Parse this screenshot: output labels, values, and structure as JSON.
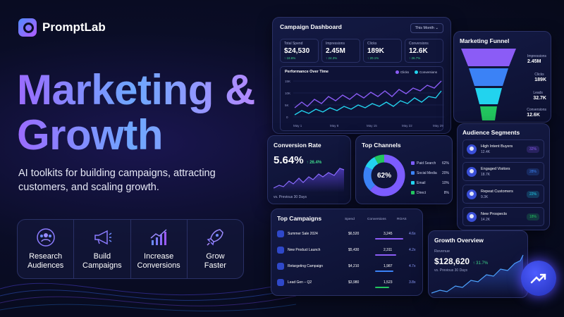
{
  "brand": {
    "name": "PromptLab",
    "accent": "#8b5cf6",
    "accent2": "#3b82f6"
  },
  "hero": {
    "line1": "Marketing &",
    "line2": "Growth",
    "tagline": "AI toolkits for building campaigns, attracting customers, and scaling growth."
  },
  "toolkit": [
    {
      "icon": "users-target-icon",
      "line1": "Research",
      "line2": "Audiences"
    },
    {
      "icon": "megaphone-icon",
      "line1": "Build",
      "line2": "Campaigns"
    },
    {
      "icon": "chart-growth-icon",
      "line1": "Increase",
      "line2": "Conversions"
    },
    {
      "icon": "rocket-icon",
      "line1": "Grow",
      "line2": "Faster"
    }
  ],
  "dashboard": {
    "title": "Campaign Dashboard",
    "period": "This Month",
    "stats": [
      {
        "label": "Total Spend",
        "value": "$24,530",
        "delta": "↑ 18.6%"
      },
      {
        "label": "Impressions",
        "value": "2.45M",
        "delta": "↑ 24.3%"
      },
      {
        "label": "Clicks",
        "value": "189K",
        "delta": "↑ 20.1%"
      },
      {
        "label": "Conversions",
        "value": "12.6K",
        "delta": "↑ 26.7%"
      }
    ],
    "performance": {
      "title": "Performance Over Time",
      "legend": [
        "Clicks",
        "Conversions"
      ],
      "yticks": [
        "15K",
        "10K",
        "5K",
        "0"
      ],
      "xticks": [
        "May 1",
        "May 8",
        "May 15",
        "May 22",
        "May 29"
      ]
    }
  },
  "funnel": {
    "title": "Marketing Funnel",
    "stages": [
      {
        "label": "Impressions",
        "value": "2.45M"
      },
      {
        "label": "Clicks",
        "value": "189K"
      },
      {
        "label": "Leads",
        "value": "32.7K"
      },
      {
        "label": "Conversions",
        "value": "12.6K"
      }
    ]
  },
  "audience": {
    "title": "Audience Segments",
    "items": [
      {
        "name": "High Intent Buyers",
        "count": "12.4K",
        "pct": "32%",
        "color": "#8b5cf6"
      },
      {
        "name": "Engaged Visitors",
        "count": "18.7K",
        "pct": "28%",
        "color": "#3b82f6"
      },
      {
        "name": "Repeat Customers",
        "count": "9.3K",
        "pct": "22%",
        "color": "#22d3ee"
      },
      {
        "name": "New Prospects",
        "count": "14.2K",
        "pct": "18%",
        "color": "#22c55e"
      }
    ]
  },
  "conversion": {
    "title": "Conversion Rate",
    "value": "5.64%",
    "delta": "↑ 26.4%",
    "foot": "vs. Previous 30 Days"
  },
  "channels": {
    "title": "Top Channels",
    "center": "62%",
    "items": [
      {
        "name": "Paid Search",
        "pct": "62%",
        "value": 62,
        "color": "#7c5cff"
      },
      {
        "name": "Social Media",
        "pct": "20%",
        "value": 20,
        "color": "#3b82f6"
      },
      {
        "name": "Email",
        "pct": "10%",
        "value": 10,
        "color": "#22d3ee"
      },
      {
        "name": "Direct",
        "pct": "8%",
        "value": 8,
        "color": "#22c55e"
      }
    ]
  },
  "campaigns": {
    "title": "Top Campaigns",
    "headers": [
      "Spend",
      "Conversions",
      "ROAS"
    ],
    "rows": [
      {
        "name": "Summer Sale 2024",
        "spend": "$6,520",
        "conv": "3,245",
        "roas": "4.6x",
        "fill": 0.95,
        "color": "#8b5cf6"
      },
      {
        "name": "New Product Launch",
        "spend": "$5,430",
        "conv": "2,311",
        "roas": "4.2x",
        "fill": 0.72,
        "color": "#8b5cf6"
      },
      {
        "name": "Retargeting Campaign",
        "spend": "$4,210",
        "conv": "1,987",
        "roas": "4.7x",
        "fill": 0.62,
        "color": "#3b82f6"
      },
      {
        "name": "Lead Gen – Q2",
        "spend": "$3,980",
        "conv": "1,523",
        "roas": "3.8x",
        "fill": 0.48,
        "color": "#22c55e"
      }
    ]
  },
  "growth": {
    "title": "Growth Overview",
    "label": "Revenue",
    "value": "$128,620",
    "delta": "↑ 31.7%",
    "foot": "vs. Previous 30 Days"
  }
}
